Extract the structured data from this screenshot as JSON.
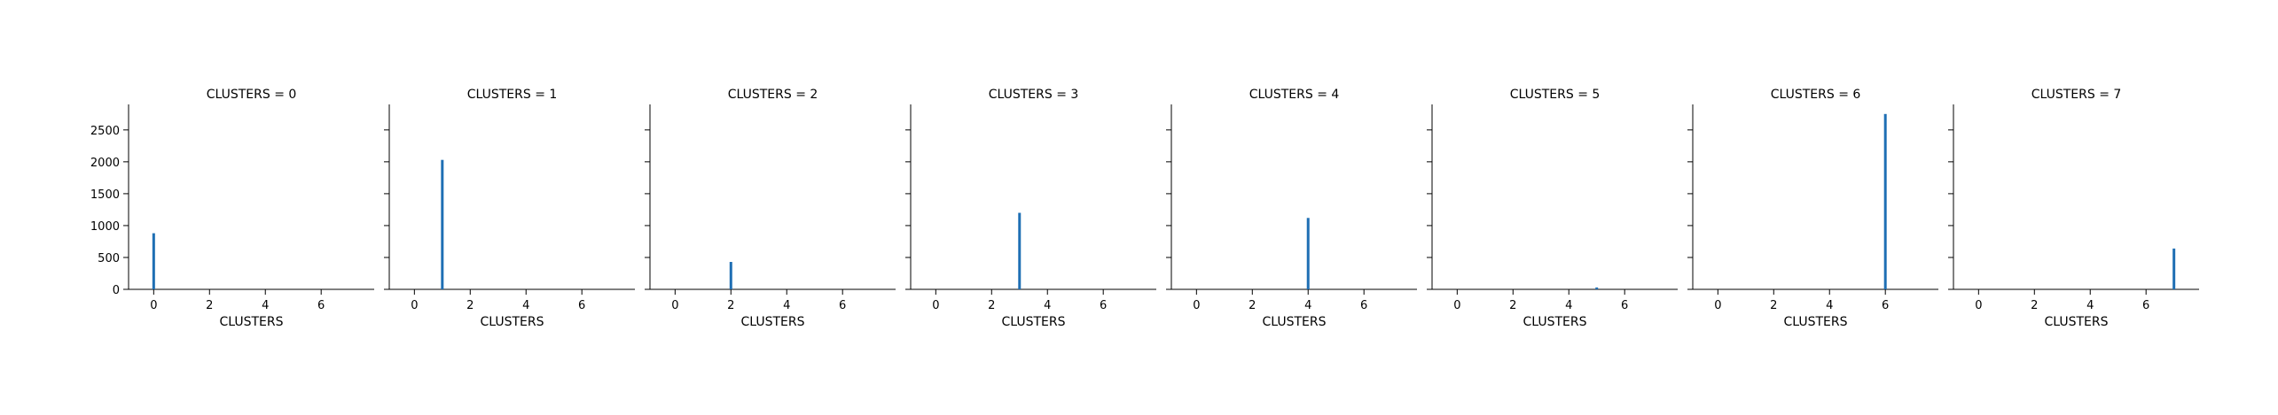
{
  "chart_data": {
    "type": "bar",
    "facet_variable": "CLUSTERS",
    "shared_y": true,
    "ylim": [
      0,
      2900
    ],
    "yticks": [
      0,
      500,
      1000,
      1500,
      2000,
      2500
    ],
    "xlim": [
      -0.9,
      7.9
    ],
    "xticks": [
      0,
      2,
      4,
      6
    ],
    "grid": false,
    "bar_color": "#1f6fb4",
    "panels": [
      {
        "title": "CLUSTERS = 0",
        "xlabel": "CLUSTERS",
        "x": 0,
        "value": 880
      },
      {
        "title": "CLUSTERS = 1",
        "xlabel": "CLUSTERS",
        "x": 1,
        "value": 2030
      },
      {
        "title": "CLUSTERS = 2",
        "xlabel": "CLUSTERS",
        "x": 2,
        "value": 430
      },
      {
        "title": "CLUSTERS = 3",
        "xlabel": "CLUSTERS",
        "x": 3,
        "value": 1200
      },
      {
        "title": "CLUSTERS = 4",
        "xlabel": "CLUSTERS",
        "x": 4,
        "value": 1120
      },
      {
        "title": "CLUSTERS = 5",
        "xlabel": "CLUSTERS",
        "x": 5,
        "value": 30
      },
      {
        "title": "CLUSTERS = 6",
        "xlabel": "CLUSTERS",
        "x": 6,
        "value": 2750
      },
      {
        "title": "CLUSTERS = 7",
        "xlabel": "CLUSTERS",
        "x": 7,
        "value": 640
      }
    ]
  }
}
